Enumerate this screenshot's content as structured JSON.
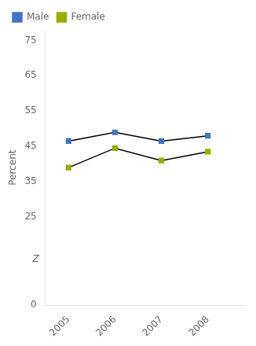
{
  "chart_data": {
    "type": "line",
    "ylabel": "Percent",
    "x": [
      2005,
      2006,
      2007,
      2008
    ],
    "series": [
      {
        "name": "Male",
        "color": "#4472c4",
        "values": [
          46.5,
          49.0,
          46.5,
          48.0
        ]
      },
      {
        "name": "Female",
        "color": "#9aad00",
        "values": [
          39.0,
          44.5,
          41.0,
          43.5
        ]
      }
    ],
    "color": "#000000",
    "marker": "square",
    "xlim": [
      2004.5,
      2008.8
    ],
    "xticks": [
      2005,
      2006,
      2007,
      2008
    ],
    "ylim": [
      0,
      78
    ],
    "yticks": [
      0,
      25,
      35,
      45,
      55,
      65,
      75
    ],
    "grid": false,
    "legend": "upper left",
    "annotations": [
      {
        "text": "Z",
        "y": 13
      }
    ]
  }
}
